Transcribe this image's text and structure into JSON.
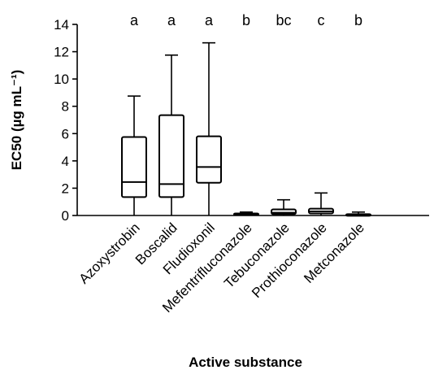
{
  "chart_data": {
    "type": "box",
    "xlabel": "Active substance",
    "ylabel": "EC50  (µg mL⁻¹)",
    "ylim": [
      0,
      14
    ],
    "yticks": [
      0,
      2,
      4,
      6,
      8,
      10,
      12,
      14
    ],
    "categories": [
      {
        "name": "Azoxystrobin",
        "min": 0.0,
        "q1": 1.35,
        "median": 2.45,
        "q3": 5.75,
        "max": 8.75,
        "letter": "a"
      },
      {
        "name": "Boscalid",
        "min": 0.0,
        "q1": 1.35,
        "median": 2.3,
        "q3": 7.35,
        "max": 11.75,
        "letter": "a"
      },
      {
        "name": "Fludioxonil",
        "min": 0.0,
        "q1": 2.4,
        "median": 3.55,
        "q3": 5.8,
        "max": 12.65,
        "letter": "a"
      },
      {
        "name": "Mefentrifluconazole",
        "min": 0.0,
        "q1": 0.05,
        "median": 0.1,
        "q3": 0.15,
        "max": 0.25,
        "letter": "b"
      },
      {
        "name": "Tebuconazole",
        "min": 0.0,
        "q1": 0.1,
        "median": 0.2,
        "q3": 0.45,
        "max": 1.15,
        "letter": "bc"
      },
      {
        "name": "Prothioconazole",
        "min": 0.0,
        "q1": 0.15,
        "median": 0.3,
        "q3": 0.5,
        "max": 1.65,
        "letter": "c"
      },
      {
        "name": "Metconazole",
        "min": 0.0,
        "q1": 0.02,
        "median": 0.05,
        "q3": 0.1,
        "max": 0.25,
        "letter": "b"
      }
    ]
  }
}
